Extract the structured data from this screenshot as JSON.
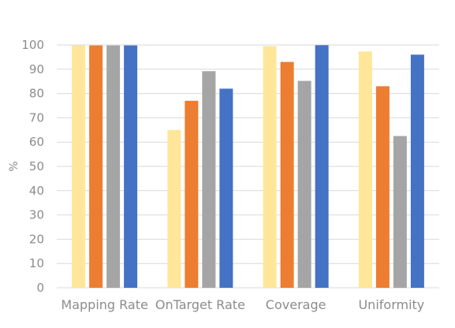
{
  "chart_data": {
    "type": "bar",
    "title": "",
    "xlabel": "",
    "ylabel": "%",
    "ylim": [
      0,
      100
    ],
    "yticks": [
      0,
      10,
      20,
      30,
      40,
      50,
      60,
      70,
      80,
      90,
      100
    ],
    "grid": true,
    "legend": "none",
    "categories": [
      "Mapping Rate",
      "OnTarget Rate",
      "Coverage",
      "Uniformity"
    ],
    "series": [
      {
        "color": "#ffe699",
        "values": [
          99.8,
          65,
          99.5,
          97.3
        ]
      },
      {
        "color": "#ed7d31",
        "values": [
          99.8,
          77,
          93,
          83
        ]
      },
      {
        "color": "#a5a5a5",
        "values": [
          99.8,
          89.2,
          85.2,
          62.5
        ]
      },
      {
        "color": "#4472c4",
        "values": [
          99.8,
          82,
          99.9,
          96
        ]
      }
    ]
  }
}
